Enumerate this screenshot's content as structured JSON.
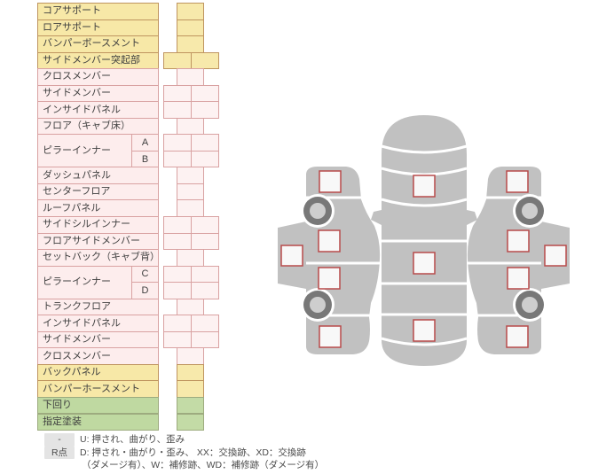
{
  "colors": {
    "yellow_bg": "#f7e8a7",
    "yellow_border": "#bf9560",
    "pink_bg": "#fdeded",
    "pink_border": "#d9a2a2",
    "green_bg": "#bfd9a1",
    "green_border": "#9dab7f",
    "text": "#3f3f3f",
    "diagram_gray": "#c1c1c1",
    "marker_fill": "#f8f8f8",
    "marker_border": "#b84b4b",
    "wheel_ring": "#787878",
    "wheel_hub": "#cecece",
    "badge_bg": "#e4e4e4"
  },
  "parts_table": {
    "rows": [
      {
        "label": "コアサポート",
        "group": "yellow",
        "box": "single"
      },
      {
        "label": "ロアサポート",
        "group": "yellow",
        "box": "single"
      },
      {
        "label": "バンパーボースメント",
        "group": "yellow",
        "box": "single"
      },
      {
        "label": "サイドメンバー突起部",
        "group": "yellow",
        "box": "double"
      },
      {
        "label": "クロスメンバー",
        "group": "pink",
        "box": "single"
      },
      {
        "label": "サイドメンバー",
        "group": "pink",
        "box": "double"
      },
      {
        "label": "インサイドパネル",
        "group": "pink",
        "box": "double"
      },
      {
        "label": "フロア（キャブ床）",
        "group": "pink",
        "box": "single"
      },
      {
        "label": "ピラーインナー",
        "group": "pink",
        "box": "double",
        "subs": [
          "A",
          "B"
        ]
      },
      {
        "label": "ダッシュパネル",
        "group": "pink",
        "box": "single"
      },
      {
        "label": "センターフロア",
        "group": "pink",
        "box": "single"
      },
      {
        "label": "ルーフパネル",
        "group": "pink",
        "box": "single"
      },
      {
        "label": "サイドシルインナー",
        "group": "pink",
        "box": "double"
      },
      {
        "label": "フロアサイドメンバー",
        "group": "pink",
        "box": "double"
      },
      {
        "label": "セットバック（キャブ背）",
        "group": "pink",
        "box": "single"
      },
      {
        "label": "ピラーインナー",
        "group": "pink",
        "box": "double",
        "subs": [
          "C",
          "D"
        ]
      },
      {
        "label": "トランクフロア",
        "group": "pink",
        "box": "single"
      },
      {
        "label": "インサイドパネル",
        "group": "pink",
        "box": "double"
      },
      {
        "label": "サイドメンバー",
        "group": "pink",
        "box": "double"
      },
      {
        "label": "クロスメンバー",
        "group": "pink",
        "box": "single"
      },
      {
        "label": "バックパネル",
        "group": "yellow",
        "box": "single"
      },
      {
        "label": "バンパーホースメント",
        "group": "yellow",
        "box": "single"
      },
      {
        "label": "下回り",
        "group": "green",
        "box": "single"
      },
      {
        "label": "指定塗装",
        "group": "green",
        "box": "single"
      }
    ]
  },
  "legend": {
    "rows": [
      {
        "badge": "-",
        "lines": [
          "U: 押され、曲がり、歪み"
        ]
      },
      {
        "badge": "R点",
        "lines": [
          "D: 押され・曲がり・歪み、 XX：交換跡、XD：交換跡",
          "（ダメージ有）、W：補修跡、WD：補修跡（ダメージ有）"
        ]
      }
    ]
  }
}
